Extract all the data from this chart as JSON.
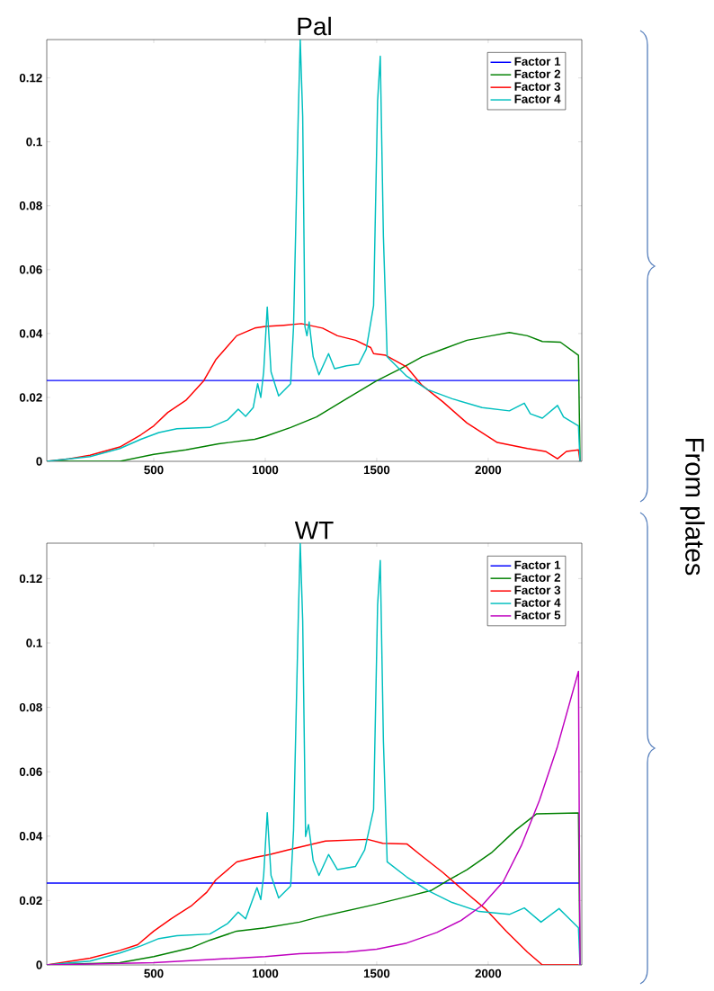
{
  "chart_data": [
    {
      "type": "line",
      "title": "Pal",
      "xlim": [
        20,
        2420
      ],
      "ylim": [
        0,
        0.132
      ],
      "xticks": [
        500,
        1000,
        1500,
        2000
      ],
      "yticks": [
        0,
        0.02,
        0.04,
        0.06,
        0.08,
        0.1,
        0.12
      ],
      "legend": "top right",
      "annotations": [
        "From plates"
      ],
      "series": [
        {
          "name": "Factor 1",
          "color": "#0000ff",
          "x": [
            20,
            2410
          ],
          "values": [
            0.0253,
            0.0253
          ]
        },
        {
          "name": "Factor 2",
          "color": "#008000",
          "x": [
            20,
            348,
            500,
            644,
            791,
            953,
            1000,
            1114,
            1230,
            1365,
            1500,
            1608,
            1703,
            1797,
            1905,
            2014,
            2095,
            2176,
            2243,
            2324,
            2405,
            2412
          ],
          "values": [
            0,
            0,
            0.0022,
            0.0036,
            0.0055,
            0.0069,
            0.0078,
            0.0106,
            0.0139,
            0.0196,
            0.0252,
            0.029,
            0.0327,
            0.0351,
            0.0379,
            0.0393,
            0.0403,
            0.0393,
            0.0375,
            0.0373,
            0.0332,
            0
          ]
        },
        {
          "name": "Factor 3",
          "color": "#ff0000",
          "x": [
            20,
            120,
            214,
            348,
            442,
            500,
            563,
            644,
            724,
            778,
            872,
            953,
            1000,
            1083,
            1162,
            1257,
            1324,
            1405,
            1473,
            1486,
            1540,
            1635,
            1703,
            1797,
            1905,
            2041,
            2176,
            2257,
            2311,
            2351,
            2405,
            2412
          ],
          "values": [
            0,
            0.0008,
            0.0019,
            0.0045,
            0.0083,
            0.0111,
            0.0153,
            0.0191,
            0.0252,
            0.0318,
            0.0393,
            0.0417,
            0.0422,
            0.0426,
            0.0431,
            0.0417,
            0.0393,
            0.0379,
            0.0356,
            0.0337,
            0.0332,
            0.0295,
            0.0238,
            0.0186,
            0.012,
            0.0059,
            0.004,
            0.0031,
            0.0008,
            0.0031,
            0.0036,
            0
          ]
        },
        {
          "name": "Factor 4",
          "color": "#00bfbf",
          "x": [
            20,
            214,
            348,
            442,
            523,
            604,
            752,
            832,
            879,
            912,
            946,
            966,
            980,
            993,
            1009,
            1026,
            1060,
            1114,
            1127,
            1148,
            1157,
            1168,
            1178,
            1187,
            1197,
            1215,
            1241,
            1284,
            1311,
            1365,
            1419,
            1453,
            1486,
            1504,
            1516,
            1530,
            1547,
            1635,
            1730,
            1838,
            1973,
            2095,
            2162,
            2189,
            2243,
            2311,
            2338,
            2405,
            2412
          ],
          "values": [
            0,
            0.0015,
            0.004,
            0.0069,
            0.009,
            0.0102,
            0.0106,
            0.013,
            0.0163,
            0.0141,
            0.0168,
            0.0243,
            0.02,
            0.028,
            0.0483,
            0.028,
            0.0205,
            0.0243,
            0.0422,
            0.108,
            0.132,
            0.108,
            0.0422,
            0.0393,
            0.0436,
            0.0327,
            0.0271,
            0.0337,
            0.029,
            0.0299,
            0.0304,
            0.0351,
            0.0487,
            0.1127,
            0.1268,
            0.0704,
            0.0327,
            0.0266,
            0.0224,
            0.0196,
            0.0168,
            0.0158,
            0.0182,
            0.0149,
            0.0135,
            0.0175,
            0.0139,
            0.0111,
            0
          ]
        }
      ]
    },
    {
      "type": "line",
      "title": "WT",
      "xlim": [
        20,
        2420
      ],
      "ylim": [
        0,
        0.131
      ],
      "xticks": [
        500,
        1000,
        1500,
        2000
      ],
      "yticks": [
        0,
        0.02,
        0.04,
        0.06,
        0.08,
        0.1,
        0.12
      ],
      "legend": "top right",
      "series": [
        {
          "name": "Factor 1",
          "color": "#0000ff",
          "x": [
            20,
            2410
          ],
          "values": [
            0.0254,
            0.0254
          ]
        },
        {
          "name": "Factor 2",
          "color": "#008000",
          "x": [
            20,
            348,
            500,
            671,
            752,
            872,
            1000,
            1154,
            1230,
            1500,
            1635,
            1743,
            1824,
            1905,
            2014,
            2122,
            2216,
            2405,
            2412
          ],
          "values": [
            0,
            0.0007,
            0.0026,
            0.0054,
            0.0077,
            0.0105,
            0.0115,
            0.0133,
            0.0147,
            0.0189,
            0.0212,
            0.0231,
            0.0264,
            0.0296,
            0.0348,
            0.0418,
            0.0469,
            0.0472,
            0
          ]
        },
        {
          "name": "Factor 3",
          "color": "#ff0000",
          "x": [
            20,
            214,
            348,
            428,
            500,
            577,
            671,
            738,
            778,
            872,
            953,
            1020,
            1100,
            1270,
            1459,
            1527,
            1635,
            1703,
            1797,
            1905,
            1986,
            2081,
            2176,
            2243,
            2405
          ],
          "values": [
            0,
            0.0021,
            0.0045,
            0.0063,
            0.0105,
            0.0143,
            0.0185,
            0.0226,
            0.0264,
            0.032,
            0.0334,
            0.0343,
            0.0357,
            0.0385,
            0.039,
            0.0378,
            0.0376,
            0.0338,
            0.0287,
            0.0222,
            0.0175,
            0.0105,
            0.004,
            0,
            0
          ]
        },
        {
          "name": "Factor 4",
          "color": "#00bfbf",
          "x": [
            20,
            214,
            348,
            442,
            523,
            604,
            752,
            832,
            879,
            912,
            963,
            980,
            993,
            1009,
            1026,
            1060,
            1114,
            1127,
            1148,
            1157,
            1168,
            1181,
            1194,
            1215,
            1241,
            1284,
            1324,
            1405,
            1446,
            1486,
            1504,
            1516,
            1530,
            1547,
            1635,
            1730,
            1838,
            1959,
            2095,
            2162,
            2237,
            2318,
            2405,
            2412
          ],
          "values": [
            0,
            0.0012,
            0.0037,
            0.0059,
            0.0082,
            0.0091,
            0.0096,
            0.0129,
            0.0164,
            0.0143,
            0.024,
            0.0203,
            0.0278,
            0.0473,
            0.0278,
            0.0208,
            0.0245,
            0.0418,
            0.107,
            0.131,
            0.107,
            0.0399,
            0.0436,
            0.0324,
            0.0278,
            0.0343,
            0.0296,
            0.0306,
            0.0357,
            0.0483,
            0.1117,
            0.1256,
            0.0697,
            0.032,
            0.0273,
            0.0231,
            0.0194,
            0.0166,
            0.0157,
            0.0177,
            0.0133,
            0.0175,
            0.0115,
            0
          ]
        },
        {
          "name": "Factor 5",
          "color": "#bf00bf",
          "x": [
            20,
            500,
            1000,
            1154,
            1365,
            1500,
            1635,
            1770,
            1878,
            1973,
            2068,
            2149,
            2230,
            2311,
            2405,
            2412
          ],
          "values": [
            0,
            0.0007,
            0.0026,
            0.0035,
            0.004,
            0.0049,
            0.0068,
            0.0101,
            0.0138,
            0.0185,
            0.0259,
            0.0371,
            0.0511,
            0.0679,
            0.0912,
            0
          ]
        }
      ]
    }
  ]
}
